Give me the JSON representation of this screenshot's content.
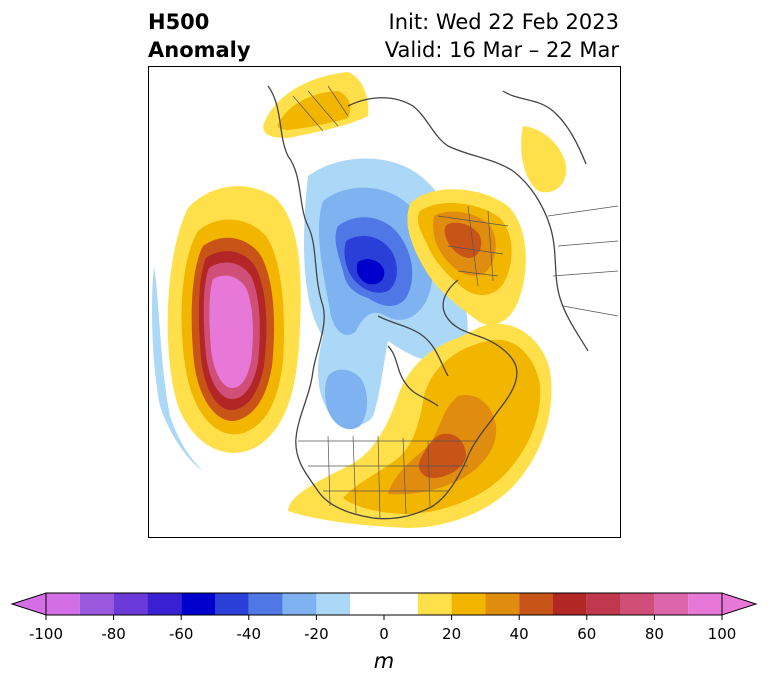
{
  "title": {
    "left_line1": "H500",
    "left_line2": "Anomaly",
    "right_line1": "Init: Wed 22 Feb 2023",
    "right_line2": "Valid: 16 Mar – 22 Mar"
  },
  "colorbar": {
    "label": "m",
    "ticks": [
      "-100",
      "-80",
      "-60",
      "-40",
      "-20",
      "0",
      "20",
      "40",
      "60",
      "80",
      "100"
    ],
    "levels": [
      -100,
      -90,
      -80,
      -70,
      -60,
      -50,
      -40,
      -30,
      -20,
      -10,
      10,
      20,
      30,
      40,
      50,
      60,
      70,
      80,
      90,
      100
    ],
    "colors": [
      "#d36ee6",
      "#9b59e0",
      "#6b3ad9",
      "#3b1fd2",
      "#0000cd",
      "#2a3fd8",
      "#4f78e6",
      "#7fb2f0",
      "#acd8f7",
      "#ffffff",
      "#ffe04a",
      "#f2b500",
      "#e08c0e",
      "#c85418",
      "#b22626",
      "#c0384e",
      "#d04f78",
      "#dc64a8",
      "#e878d8"
    ],
    "extend": "both"
  },
  "map": {
    "projection": "north-polar-stereographic",
    "field": "500 hPa geopotential height anomaly",
    "units": "m"
  }
}
